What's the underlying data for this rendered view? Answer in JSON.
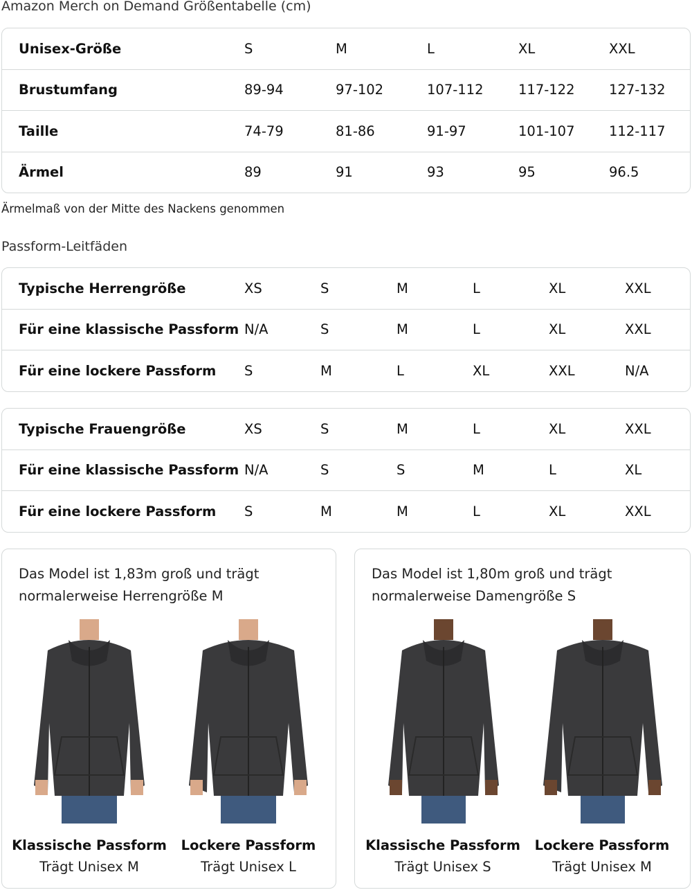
{
  "title": "Amazon Merch on Demand Größentabelle (cm)",
  "size_table": {
    "rows": [
      [
        "Unisex-Größe",
        "S",
        "M",
        "L",
        "XL",
        "XXL"
      ],
      [
        "Brustumfang",
        "89-94",
        "97-102",
        "107-112",
        "117-122",
        "127-132"
      ],
      [
        "Taille",
        "74-79",
        "81-86",
        "91-97",
        "101-107",
        "112-117"
      ],
      [
        "Ärmel",
        "89",
        "91",
        "93",
        "95",
        "96.5"
      ]
    ]
  },
  "note": "Ärmelmaß von der Mitte des Nackens genommen",
  "fit_heading": "Passform-Leitfäden",
  "men_table": {
    "rows": [
      [
        "Typische Herrengröße",
        "XS",
        "S",
        "M",
        "L",
        "XL",
        "XXL"
      ],
      [
        "Für eine klassische Passform",
        "N/A",
        "S",
        "M",
        "L",
        "XL",
        "XXL"
      ],
      [
        "Für eine lockere Passform",
        "S",
        "M",
        "L",
        "XL",
        "XXL",
        "N/A"
      ]
    ]
  },
  "women_table": {
    "rows": [
      [
        "Typische Frauengröße",
        "XS",
        "S",
        "M",
        "L",
        "XL",
        "XXL"
      ],
      [
        "Für eine klassische Passform",
        "N/A",
        "S",
        "S",
        "M",
        "L",
        "XL"
      ],
      [
        "Für eine lockere Passform",
        "S",
        "M",
        "M",
        "L",
        "XL",
        "XXL"
      ]
    ]
  },
  "cards": [
    {
      "line1": "Das Model ist 1,83m groß und trägt",
      "line2": "normalerweise Herrengröße M",
      "fits": [
        {
          "title": "Klassische Passform",
          "sub": "Trägt Unisex M"
        },
        {
          "title": "Lockere Passform",
          "sub": "Trägt Unisex L"
        }
      ]
    },
    {
      "line1": "Das Model ist 1,80m groß und trägt",
      "line2": "normalerweise Damengröße S",
      "fits": [
        {
          "title": "Klassische Passform",
          "sub": "Trägt Unisex S"
        },
        {
          "title": "Lockere Passform",
          "sub": "Trägt Unisex M"
        }
      ]
    }
  ],
  "colors": {
    "border": "#d5d9d9",
    "hoodie": "#3a3a3c",
    "jeans": "#3f5a7e",
    "skin_men": "#d9a98a",
    "skin_women": "#6b4630"
  }
}
